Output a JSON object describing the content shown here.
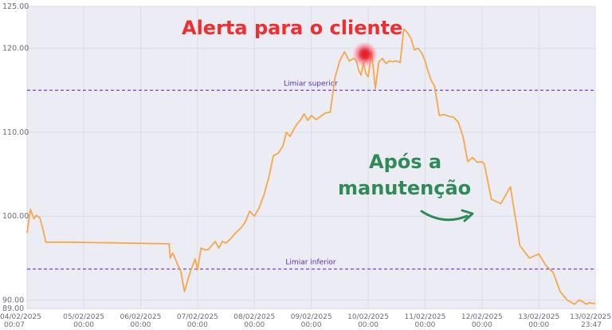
{
  "chart_data": {
    "type": "line",
    "title": "",
    "xlabel": "",
    "ylabel": "",
    "ylim": [
      89.0,
      125.0
    ],
    "y_ticks": [
      "125.00",
      "120.00",
      "110.00",
      "100.00",
      "90.00",
      "89.00"
    ],
    "x_ticks": [
      {
        "date": "04/02/2025",
        "time": "00:07"
      },
      {
        "date": "05/02/2025",
        "time": "00:00"
      },
      {
        "date": "06/02/2025",
        "time": "00:00"
      },
      {
        "date": "07/02/2025",
        "time": "00:00"
      },
      {
        "date": "08/02/2025",
        "time": "00:00"
      },
      {
        "date": "09/02/2025",
        "time": "00:00"
      },
      {
        "date": "10/02/2025",
        "time": "00:00"
      },
      {
        "date": "11/02/2025",
        "time": "00:00"
      },
      {
        "date": "12/02/2025",
        "time": "00:00"
      },
      {
        "date": "13/02/2025",
        "time": "00:00"
      },
      {
        "date": "13/02/2025",
        "time": "23:47"
      }
    ],
    "grid": true,
    "series": [
      {
        "color": "#f5a84a",
        "x": [
          "04/02/2025 00:07",
          "04/02/2025 01:30",
          "04/02/2025 03:00",
          "04/02/2025 04:00",
          "04/02/2025 05:30",
          "04/02/2025 07:00",
          "04/02/2025 08:00",
          "04/02/2025 09:00",
          "04/02/2025 10:00",
          "04/02/2025 11:00",
          "04/02/2025 12:00",
          "04/02/2025 13:30",
          "04/02/2025 15:00",
          "04/02/2025 16:30",
          "04/02/2025 18:00",
          "04/02/2025 18:30",
          "06/02/2025 12:00",
          "06/02/2025 12:30",
          "06/02/2025 13:30",
          "06/02/2025 14:30",
          "06/02/2025 15:30",
          "06/02/2025 17:00",
          "06/02/2025 18:30",
          "06/02/2025 20:00",
          "06/02/2025 21:30",
          "06/02/2025 23:00",
          "07/02/2025 00:00",
          "07/02/2025 01:30",
          "07/02/2025 03:00",
          "07/02/2025 04:30",
          "07/02/2025 06:00",
          "07/02/2025 07:30",
          "07/02/2025 09:00",
          "07/02/2025 10:30",
          "07/02/2025 12:00",
          "07/02/2025 14:00",
          "07/02/2025 16:00",
          "07/02/2025 18:00",
          "07/02/2025 20:00",
          "07/02/2025 22:00",
          "08/02/2025 00:00",
          "08/02/2025 02:00",
          "08/02/2025 04:00",
          "08/02/2025 06:00",
          "08/02/2025 08:00",
          "08/02/2025 10:00",
          "08/02/2025 12:00",
          "08/02/2025 13:30",
          "08/02/2025 15:00",
          "08/02/2025 16:30",
          "08/02/2025 18:00",
          "08/02/2025 19:30",
          "08/02/2025 21:00",
          "08/02/2025 22:30",
          "09/02/2025 00:00",
          "09/02/2025 02:00",
          "09/02/2025 04:00",
          "09/02/2025 06:00",
          "09/02/2025 08:00",
          "09/02/2025 10:00",
          "09/02/2025 12:00",
          "09/02/2025 14:00",
          "09/02/2025 16:00",
          "09/02/2025 18:00",
          "09/02/2025 19:00",
          "09/02/2025 20:00",
          "09/02/2025 21:00",
          "09/02/2025 22:00",
          "09/02/2025 23:00",
          "10/02/2025 00:00",
          "10/02/2025 01:30",
          "10/02/2025 03:00",
          "10/02/2025 04:30",
          "10/02/2025 06:00",
          "10/02/2025 07:30",
          "10/02/2025 09:00",
          "10/02/2025 10:30",
          "10/02/2025 12:00",
          "10/02/2025 13:30",
          "10/02/2025 15:00",
          "10/02/2025 16:30",
          "10/02/2025 18:00",
          "10/02/2025 19:30",
          "10/02/2025 21:00",
          "10/02/2025 22:30",
          "11/02/2025 00:00",
          "11/02/2025 01:00",
          "11/02/2025 02:30",
          "11/02/2025 04:00",
          "11/02/2025 06:00",
          "11/02/2025 08:00",
          "11/02/2025 10:00",
          "11/02/2025 12:00",
          "11/02/2025 14:00",
          "11/02/2025 16:00",
          "11/02/2025 18:00",
          "11/02/2025 20:00",
          "11/02/2025 22:00",
          "12/02/2025 00:00",
          "12/02/2025 01:00",
          "12/02/2025 04:00",
          "12/02/2025 08:00",
          "12/02/2025 12:00",
          "12/02/2025 16:00",
          "12/02/2025 20:00",
          "13/02/2025 00:00",
          "13/02/2025 03:00",
          "13/02/2025 06:00",
          "13/02/2025 09:00",
          "13/02/2025 12:00",
          "13/02/2025 15:00",
          "13/02/2025 17:00",
          "13/02/2025 18:30",
          "13/02/2025 20:00",
          "13/02/2025 21:30",
          "13/02/2025 23:00",
          "13/02/2025 23:47"
        ],
        "y": [
          98.0,
          100.8,
          99.7,
          100.1,
          99.8,
          98.2,
          96.9,
          96.9,
          96.9,
          96.9,
          96.9,
          96.9,
          96.9,
          96.9,
          96.9,
          96.9,
          96.7,
          95.0,
          95.6,
          95.0,
          94.3,
          93.4,
          91.0,
          92.5,
          93.8,
          94.9,
          93.6,
          96.2,
          96.0,
          96.0,
          96.5,
          97.0,
          96.2,
          97.0,
          96.8,
          97.3,
          98.0,
          98.5,
          99.2,
          100.6,
          100.0,
          101.0,
          102.5,
          104.5,
          107.2,
          107.5,
          108.3,
          110.0,
          109.5,
          110.3,
          111.0,
          111.5,
          112.2,
          111.4,
          112.0,
          111.5,
          111.9,
          112.3,
          112.4,
          116.5,
          118.5,
          119.6,
          118.5,
          118.8,
          118.5,
          117.4,
          116.8,
          118.3,
          117.0,
          116.6,
          119.5,
          115.2,
          118.4,
          118.8,
          118.2,
          118.5,
          118.4,
          118.5,
          118.3,
          122.3,
          121.9,
          121.2,
          119.8,
          120.0,
          119.5,
          118.5,
          117.5,
          116.2,
          115.5,
          112.0,
          112.1,
          111.9,
          111.8,
          111.2,
          109.5,
          106.5,
          107.0,
          106.4,
          106.5,
          106.2,
          102.0,
          101.5,
          103.5,
          96.5,
          95.0,
          95.5,
          94.1,
          93.3,
          91.0,
          90.0,
          89.5,
          90.0,
          89.8,
          89.5,
          89.7,
          89.6,
          89.6
        ]
      }
    ],
    "thresholds": [
      {
        "label": "Limiar superior",
        "y": 115.0,
        "color": "#7b3fc4"
      },
      {
        "label": "Limiar inferior",
        "y": 93.7,
        "color": "#7b3fc4"
      }
    ],
    "annotations": [
      {
        "text": "Alerta para o cliente",
        "color": "#ee2f2f"
      },
      {
        "text_lines": [
          "Após a",
          "manutenção"
        ],
        "color": "#2e8b57"
      }
    ]
  }
}
